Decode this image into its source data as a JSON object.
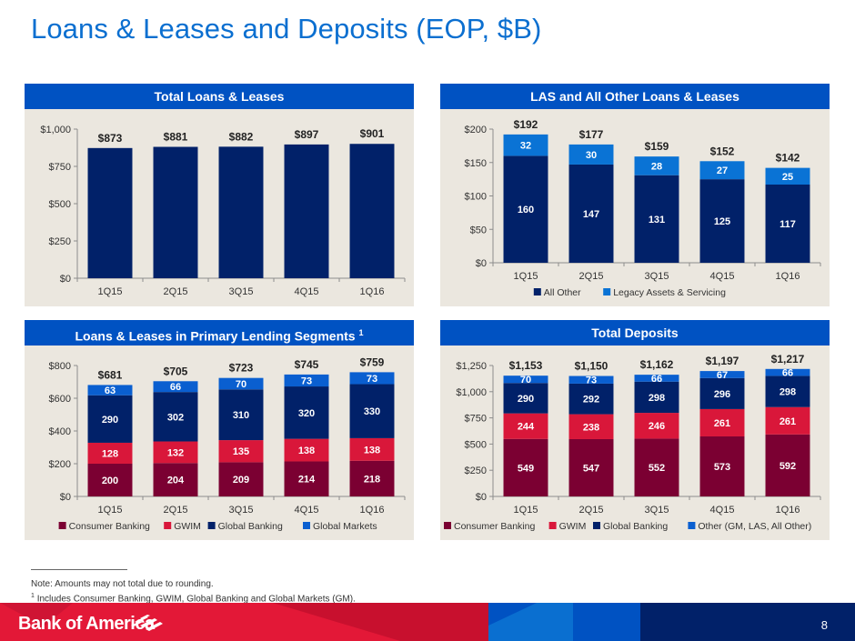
{
  "page": {
    "title": "Loans & Leases and Deposits (EOP, $B)",
    "page_number": "8",
    "note": "Note: Amounts may not total due to rounding.",
    "footnote_marker": "1",
    "footnote": "Includes Consumer Banking, GWIM, Global Banking and Global Markets (GM).",
    "brand": "Bank of America",
    "colors": {
      "title": "#0b6fd0",
      "header": "#0052c2",
      "navy": "#012169",
      "light_blue": "#0a73d5",
      "red": "#e31837",
      "maroon": "#7b0032",
      "footer_red": "#e31837"
    }
  },
  "chart_data": [
    {
      "id": "total-loans",
      "type": "bar",
      "title": "Total Loans & Leases",
      "title_sup": "",
      "categories": [
        "1Q15",
        "2Q15",
        "3Q15",
        "4Q15",
        "1Q16"
      ],
      "series": [
        {
          "name": "Total Loans & Leases",
          "color": "#012169",
          "values": [
            873,
            881,
            882,
            897,
            901
          ],
          "show_labels": false
        }
      ],
      "totals": [
        "$873",
        "$881",
        "$882",
        "$897",
        "$901"
      ],
      "yticks": [
        "$0",
        "$250",
        "$500",
        "$750",
        "$1,000"
      ],
      "ylim": [
        0,
        1000
      ],
      "legend": [],
      "legend_placement": "none",
      "grid": false
    },
    {
      "id": "las-other",
      "type": "bar",
      "stacked": true,
      "title": "LAS and All Other Loans & Leases",
      "title_sup": "",
      "categories": [
        "1Q15",
        "2Q15",
        "3Q15",
        "4Q15",
        "1Q16"
      ],
      "series": [
        {
          "name": "All Other",
          "color": "#012169",
          "values": [
            160,
            147,
            131,
            125,
            117
          ],
          "show_labels": true
        },
        {
          "name": "Legacy Assets & Servicing",
          "color": "#0a73d5",
          "values": [
            32,
            30,
            28,
            27,
            25
          ],
          "show_labels": true
        }
      ],
      "totals": [
        "$192",
        "$177",
        "$159",
        "$152",
        "$142"
      ],
      "yticks": [
        "$0",
        "$50",
        "$100",
        "$150",
        "$200"
      ],
      "ylim": [
        0,
        200
      ],
      "legend": [
        "All Other",
        "Legacy Assets & Servicing"
      ],
      "legend_placement": "bottom",
      "grid": false
    },
    {
      "id": "primary-lending",
      "type": "bar",
      "stacked": true,
      "title": "Loans & Leases in Primary Lending Segments",
      "title_sup": "1",
      "categories": [
        "1Q15",
        "2Q15",
        "3Q15",
        "4Q15",
        "1Q16"
      ],
      "series": [
        {
          "name": "Consumer Banking",
          "color": "#7b0032",
          "values": [
            200,
            204,
            209,
            214,
            218
          ],
          "show_labels": true
        },
        {
          "name": "GWIM",
          "color": "#d9173a",
          "values": [
            128,
            132,
            135,
            138,
            138
          ],
          "show_labels": true
        },
        {
          "name": "Global Banking",
          "color": "#012169",
          "values": [
            290,
            302,
            310,
            320,
            330
          ],
          "show_labels": true
        },
        {
          "name": "Global Markets",
          "color": "#0a5fd0",
          "values": [
            63,
            66,
            70,
            73,
            73
          ],
          "show_labels": true
        }
      ],
      "totals": [
        "$681",
        "$705",
        "$723",
        "$745",
        "$759"
      ],
      "yticks": [
        "$0",
        "$200",
        "$400",
        "$600",
        "$800"
      ],
      "ylim": [
        0,
        800
      ],
      "legend": [
        "Consumer Banking",
        "GWIM",
        "Global Banking",
        "Global Markets"
      ],
      "legend_placement": "bottom",
      "grid": false
    },
    {
      "id": "total-deposits",
      "type": "bar",
      "stacked": true,
      "title": "Total Deposits",
      "title_sup": "",
      "categories": [
        "1Q15",
        "2Q15",
        "3Q15",
        "4Q15",
        "1Q16"
      ],
      "series": [
        {
          "name": "Consumer Banking",
          "color": "#7b0032",
          "values": [
            549,
            547,
            552,
            573,
            592
          ],
          "show_labels": true
        },
        {
          "name": "GWIM",
          "color": "#d9173a",
          "values": [
            244,
            238,
            246,
            261,
            261
          ],
          "show_labels": true
        },
        {
          "name": "Global Banking",
          "color": "#012169",
          "values": [
            290,
            292,
            298,
            296,
            298
          ],
          "show_labels": true
        },
        {
          "name": "Other (GM, LAS, All Other)",
          "color": "#0a5fd0",
          "values": [
            70,
            73,
            66,
            67,
            66
          ],
          "show_labels": true
        }
      ],
      "totals": [
        "$1,153",
        "$1,150",
        "$1,162",
        "$1,197",
        "$1,217"
      ],
      "yticks": [
        "$0",
        "$250",
        "$500",
        "$750",
        "$1,000",
        "$1,250"
      ],
      "ylim": [
        0,
        1250
      ],
      "legend": [
        "Consumer Banking",
        "GWIM",
        "Global Banking",
        "Other (GM, LAS, All Other)"
      ],
      "legend_placement": "bottom",
      "grid": false
    }
  ]
}
